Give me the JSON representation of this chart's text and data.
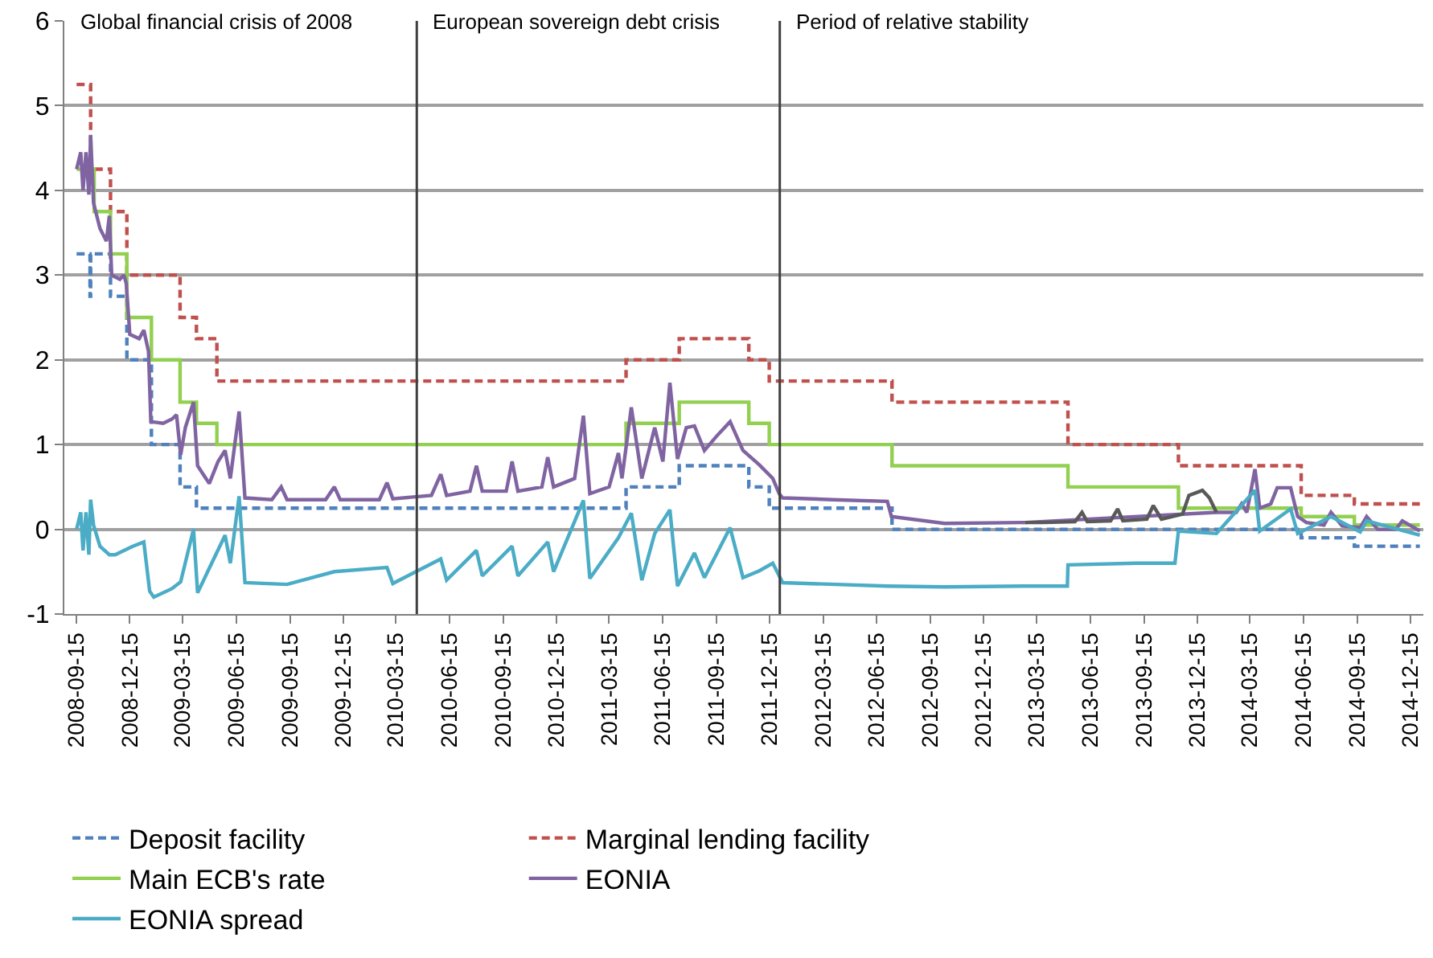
{
  "chart_data": {
    "type": "line",
    "xlim": [
      "2008-08-25",
      "2015-01-06"
    ],
    "xticks": [
      "2008-09-15",
      "2008-12-15",
      "2009-03-15",
      "2009-06-15",
      "2009-09-15",
      "2009-12-15",
      "2010-03-15",
      "2010-06-15",
      "2010-09-15",
      "2010-12-15",
      "2011-03-15",
      "2011-06-15",
      "2011-09-15",
      "2011-12-15",
      "2012-03-15",
      "2012-06-15",
      "2012-09-15",
      "2012-12-15",
      "2013-03-15",
      "2013-06-15",
      "2013-09-15",
      "2013-12-15",
      "2014-03-15",
      "2014-06-15",
      "2014-09-15",
      "2014-12-15"
    ],
    "ylim": [
      -1,
      6
    ],
    "yticks": [
      -1,
      0,
      1,
      2,
      3,
      4,
      5,
      6
    ],
    "grid": "y",
    "legend": "bottom",
    "annotations": [
      "Global financial crisis of 2008",
      "European sovereign debt crisis",
      "Period of relative stability"
    ],
    "ref_lines": [
      {
        "axis": "x",
        "value": "2010-04-20",
        "color": "#404040"
      },
      {
        "axis": "x",
        "value": "2012-01-01",
        "color": "#404040"
      }
    ],
    "series": [
      {
        "name": "Deposit facility",
        "type": "step",
        "color": "#4f81bd",
        "line_style": "dashed",
        "x": [
          "2008-09-15",
          "2008-10-08",
          "2008-10-09",
          "2008-11-12",
          "2008-12-10",
          "2009-01-21",
          "2009-03-11",
          "2009-04-08",
          "2011-04-13",
          "2011-07-13",
          "2011-11-09",
          "2011-12-14",
          "2012-07-11",
          "2014-06-11",
          "2014-09-10",
          "2014-12-31"
        ],
        "values": [
          3.25,
          2.75,
          3.25,
          2.75,
          2.0,
          1.0,
          0.5,
          0.25,
          0.5,
          0.75,
          0.5,
          0.25,
          0.0,
          -0.1,
          -0.2,
          -0.2
        ]
      },
      {
        "name": "Marginal lending facility",
        "type": "step",
        "color": "#c0504d",
        "line_style": "dashed",
        "x": [
          "2008-09-15",
          "2008-10-09",
          "2008-11-12",
          "2008-12-10",
          "2009-03-11",
          "2009-04-08",
          "2009-05-13",
          "2011-04-13",
          "2011-07-13",
          "2011-11-09",
          "2011-12-14",
          "2012-07-11",
          "2013-05-08",
          "2013-11-13",
          "2014-06-11",
          "2014-09-10",
          "2014-12-31"
        ],
        "values": [
          5.25,
          4.25,
          3.75,
          3.0,
          2.5,
          2.25,
          1.75,
          2.0,
          2.25,
          2.0,
          1.75,
          1.5,
          1.0,
          0.75,
          0.4,
          0.3,
          0.3
        ]
      },
      {
        "name": "Main ECB's rate",
        "type": "step",
        "color": "#92d050",
        "line_style": "solid",
        "x": [
          "2008-09-15",
          "2008-10-15",
          "2008-11-12",
          "2008-12-10",
          "2009-01-21",
          "2009-03-11",
          "2009-04-08",
          "2009-05-13",
          "2011-04-13",
          "2011-07-13",
          "2011-11-09",
          "2011-12-14",
          "2012-07-11",
          "2013-05-08",
          "2013-11-13",
          "2014-06-11",
          "2014-09-10",
          "2014-12-31"
        ],
        "values": [
          4.25,
          3.75,
          3.25,
          2.5,
          2.0,
          1.5,
          1.25,
          1.0,
          1.25,
          1.5,
          1.25,
          1.0,
          0.75,
          0.5,
          0.25,
          0.15,
          0.05,
          0.05
        ]
      },
      {
        "name": "EONIA",
        "color": "#8064a2",
        "line_style": "solid",
        "x": [
          "2008-09-15",
          "2008-09-22",
          "2008-09-26",
          "2008-10-01",
          "2008-10-06",
          "2008-10-09",
          "2008-10-14",
          "2008-10-25",
          "2008-11-05",
          "2008-11-10",
          "2008-11-14",
          "2008-11-28",
          "2008-12-05",
          "2008-12-09",
          "2008-12-15",
          "2008-12-31",
          "2009-01-08",
          "2009-01-16",
          "2009-01-20",
          "2009-02-10",
          "2009-02-25",
          "2009-03-05",
          "2009-03-12",
          "2009-03-20",
          "2009-04-03",
          "2009-04-10",
          "2009-04-30",
          "2009-05-15",
          "2009-05-27",
          "2009-06-05",
          "2009-06-20",
          "2009-06-30",
          "2009-08-15",
          "2009-08-31",
          "2009-09-10",
          "2009-11-15",
          "2009-11-30",
          "2009-12-10",
          "2010-02-15",
          "2010-02-28",
          "2010-03-10",
          "2010-05-15",
          "2010-05-31",
          "2010-06-10",
          "2010-07-20",
          "2010-07-31",
          "2010-08-10",
          "2010-09-20",
          "2010-09-30",
          "2010-10-10",
          "2010-11-20",
          "2010-11-30",
          "2010-12-10",
          "2011-01-15",
          "2011-01-30",
          "2011-02-10",
          "2011-03-15",
          "2011-03-31",
          "2011-04-06",
          "2011-04-22",
          "2011-05-10",
          "2011-06-01",
          "2011-06-15",
          "2011-06-27",
          "2011-07-10",
          "2011-07-25",
          "2011-08-08",
          "2011-08-25",
          "2011-09-15",
          "2011-10-08",
          "2011-10-30",
          "2011-11-27",
          "2011-12-20",
          "2011-12-31",
          "2012-01-06",
          "2012-04-01",
          "2012-07-03",
          "2012-07-10",
          "2012-10-09",
          "2013-02-24",
          "2014-01-17",
          "2014-02-20",
          "2014-03-01",
          "2014-03-10",
          "2014-03-24",
          "2014-04-01",
          "2014-04-20",
          "2014-05-01",
          "2014-05-24",
          "2014-06-05",
          "2014-06-20",
          "2014-07-20",
          "2014-08-01",
          "2014-08-20",
          "2014-09-20",
          "2014-10-01",
          "2014-10-20",
          "2014-11-20",
          "2014-12-01",
          "2014-12-31"
        ],
        "values": [
          4.25,
          4.45,
          4.0,
          4.45,
          3.95,
          4.65,
          3.85,
          3.55,
          3.4,
          3.7,
          3.0,
          2.95,
          3.0,
          2.9,
          2.3,
          2.25,
          2.35,
          2.1,
          1.27,
          1.25,
          1.3,
          1.35,
          0.88,
          1.2,
          1.5,
          0.75,
          0.54,
          0.8,
          0.93,
          0.6,
          1.39,
          0.37,
          0.35,
          0.5,
          0.35,
          0.35,
          0.5,
          0.35,
          0.35,
          0.55,
          0.36,
          0.4,
          0.65,
          0.4,
          0.45,
          0.75,
          0.45,
          0.45,
          0.8,
          0.45,
          0.5,
          0.85,
          0.5,
          0.6,
          1.34,
          0.42,
          0.5,
          0.9,
          0.6,
          1.44,
          0.6,
          1.2,
          0.8,
          1.73,
          0.83,
          1.2,
          1.22,
          0.93,
          1.1,
          1.27,
          0.93,
          0.76,
          0.6,
          0.42,
          0.37,
          0.35,
          0.33,
          0.15,
          0.07,
          0.08,
          0.2,
          0.2,
          0.3,
          0.2,
          0.71,
          0.25,
          0.3,
          0.49,
          0.49,
          0.15,
          0.08,
          0.05,
          0.2,
          0.04,
          0.02,
          0.15,
          0.0,
          0.0,
          0.1,
          -0.02
        ]
      },
      {
        "color": "#595959",
        "line_style": "solid",
        "x": [
          "2013-02-24",
          "2013-03-25",
          "2013-05-20",
          "2013-06-01",
          "2013-06-10",
          "2013-07-20",
          "2013-08-01",
          "2013-08-10",
          "2013-09-20",
          "2013-10-01",
          "2013-10-15",
          "2013-11-20",
          "2013-12-01",
          "2013-12-24",
          "2014-01-05",
          "2014-01-17"
        ],
        "values": [
          0.08,
          0.08,
          0.09,
          0.2,
          0.09,
          0.1,
          0.24,
          0.1,
          0.12,
          0.28,
          0.12,
          0.18,
          0.4,
          0.46,
          0.37,
          0.2
        ]
      },
      {
        "name": "EONIA spread",
        "color": "#4bacc6",
        "line_style": "solid",
        "x": [
          "2008-09-15",
          "2008-09-22",
          "2008-09-26",
          "2008-10-01",
          "2008-10-06",
          "2008-10-09",
          "2008-10-14",
          "2008-10-25",
          "2008-11-10",
          "2008-11-20",
          "2008-12-05",
          "2008-12-20",
          "2009-01-08",
          "2009-01-18",
          "2009-01-25",
          "2009-02-25",
          "2009-03-12",
          "2009-04-03",
          "2009-04-10",
          "2009-04-30",
          "2009-05-27",
          "2009-06-05",
          "2009-06-20",
          "2009-06-30",
          "2009-09-10",
          "2009-11-30",
          "2010-02-28",
          "2010-03-10",
          "2010-05-31",
          "2010-06-10",
          "2010-07-31",
          "2010-08-10",
          "2010-09-30",
          "2010-10-10",
          "2010-11-30",
          "2010-12-10",
          "2011-01-30",
          "2011-02-10",
          "2011-03-31",
          "2011-04-22",
          "2011-05-10",
          "2011-06-01",
          "2011-06-27",
          "2011-07-10",
          "2011-08-08",
          "2011-08-25",
          "2011-10-08",
          "2011-10-30",
          "2011-11-27",
          "2011-12-20",
          "2012-01-06",
          "2012-07-03",
          "2012-10-09",
          "2013-02-24",
          "2013-05-07",
          "2013-05-08",
          "2013-09-01",
          "2013-11-07",
          "2013-11-13",
          "2014-01-17",
          "2014-03-24",
          "2014-04-01",
          "2014-05-24",
          "2014-06-05",
          "2014-08-01",
          "2014-09-20",
          "2014-10-01",
          "2014-12-31"
        ],
        "values": [
          0.0,
          0.2,
          -0.25,
          0.2,
          -0.3,
          0.35,
          0.05,
          -0.2,
          -0.3,
          -0.3,
          -0.25,
          -0.2,
          -0.15,
          -0.73,
          -0.8,
          -0.7,
          -0.62,
          0.0,
          -0.75,
          -0.46,
          -0.07,
          -0.4,
          0.39,
          -0.63,
          -0.65,
          -0.5,
          -0.45,
          -0.64,
          -0.35,
          -0.6,
          -0.25,
          -0.55,
          -0.2,
          -0.55,
          -0.15,
          -0.5,
          0.34,
          -0.58,
          -0.1,
          0.19,
          -0.6,
          -0.05,
          0.23,
          -0.67,
          -0.28,
          -0.57,
          0.02,
          -0.57,
          -0.49,
          -0.4,
          -0.63,
          -0.67,
          -0.68,
          -0.67,
          -0.67,
          -0.42,
          -0.4,
          -0.4,
          -0.02,
          -0.05,
          0.46,
          -0.02,
          0.24,
          -0.05,
          0.15,
          -0.03,
          0.1,
          -0.07
        ]
      }
    ]
  }
}
